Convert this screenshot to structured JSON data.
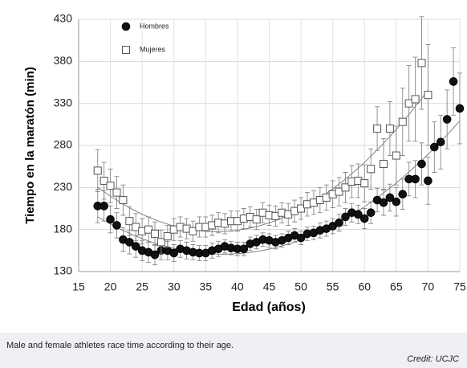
{
  "chart_data": {
    "type": "scatter",
    "xlabel": "Edad (años)",
    "ylabel": "Tiempo en la maratón (min)",
    "xlim": [
      15,
      75
    ],
    "xticks": [
      15,
      20,
      25,
      30,
      35,
      40,
      45,
      50,
      55,
      60,
      65,
      70,
      75
    ],
    "ylim": [
      130,
      430
    ],
    "yticks": [
      130,
      180,
      230,
      280,
      330,
      380,
      430
    ],
    "grid": true,
    "legend": "upper left",
    "trendline": "quadratic",
    "series": [
      {
        "name": "Hombres",
        "color": "#111111",
        "marker": "circle",
        "x": [
          18,
          19,
          20,
          21,
          22,
          23,
          24,
          25,
          26,
          27,
          28,
          29,
          30,
          31,
          32,
          33,
          34,
          35,
          36,
          37,
          38,
          39,
          40,
          41,
          42,
          43,
          44,
          45,
          46,
          47,
          48,
          49,
          50,
          51,
          52,
          53,
          54,
          55,
          56,
          57,
          58,
          59,
          60,
          61,
          62,
          63,
          64,
          65,
          66,
          67,
          68,
          69,
          70,
          71,
          72,
          73,
          74,
          75
        ],
        "values": [
          208,
          208,
          192,
          185,
          168,
          165,
          160,
          155,
          153,
          150,
          155,
          155,
          152,
          157,
          155,
          153,
          152,
          152,
          155,
          157,
          160,
          158,
          157,
          157,
          163,
          165,
          168,
          167,
          165,
          167,
          170,
          173,
          170,
          175,
          176,
          179,
          181,
          184,
          188,
          195,
          200,
          198,
          193,
          200,
          215,
          212,
          218,
          213,
          222,
          240,
          240,
          258,
          238,
          278,
          284,
          311,
          356,
          324
        ],
        "errors": [
          20,
          18,
          16,
          15,
          14,
          14,
          13,
          12,
          12,
          12,
          11,
          11,
          10,
          10,
          10,
          9,
          9,
          9,
          9,
          9,
          8,
          8,
          8,
          8,
          8,
          8,
          8,
          8,
          8,
          8,
          8,
          8,
          8,
          8,
          8,
          9,
          9,
          9,
          10,
          10,
          11,
          11,
          12,
          13,
          14,
          15,
          16,
          17,
          18,
          20,
          22,
          25,
          28,
          30,
          32,
          35,
          40,
          42
        ]
      },
      {
        "name": "Mujeres",
        "color": "#ffffff",
        "marker": "square",
        "x": [
          18,
          19,
          20,
          21,
          22,
          23,
          24,
          25,
          26,
          27,
          28,
          29,
          30,
          31,
          32,
          33,
          34,
          35,
          36,
          37,
          38,
          39,
          40,
          41,
          42,
          43,
          44,
          45,
          46,
          47,
          48,
          49,
          50,
          51,
          52,
          53,
          54,
          55,
          56,
          57,
          58,
          59,
          60,
          61,
          62,
          63,
          64,
          65,
          66,
          67,
          68,
          69,
          70
        ],
        "values": [
          250,
          238,
          232,
          224,
          215,
          190,
          183,
          178,
          180,
          175,
          165,
          172,
          180,
          183,
          181,
          178,
          183,
          183,
          185,
          188,
          187,
          190,
          190,
          193,
          195,
          192,
          200,
          197,
          196,
          200,
          198,
          202,
          205,
          210,
          212,
          215,
          218,
          222,
          225,
          230,
          237,
          238,
          235,
          252,
          300,
          258,
          300,
          268,
          308,
          330,
          335,
          378,
          340
        ],
        "errors": [
          25,
          22,
          20,
          19,
          18,
          17,
          16,
          15,
          15,
          14,
          14,
          13,
          13,
          12,
          12,
          12,
          12,
          12,
          12,
          12,
          12,
          12,
          12,
          12,
          12,
          12,
          12,
          12,
          12,
          12,
          13,
          13,
          13,
          14,
          14,
          15,
          15,
          16,
          17,
          18,
          19,
          20,
          22,
          24,
          26,
          30,
          32,
          35,
          40,
          45,
          50,
          55,
          60
        ]
      }
    ]
  },
  "caption": "Male and female athletes race time according to their age.",
  "credit": "Credit: UCJC"
}
